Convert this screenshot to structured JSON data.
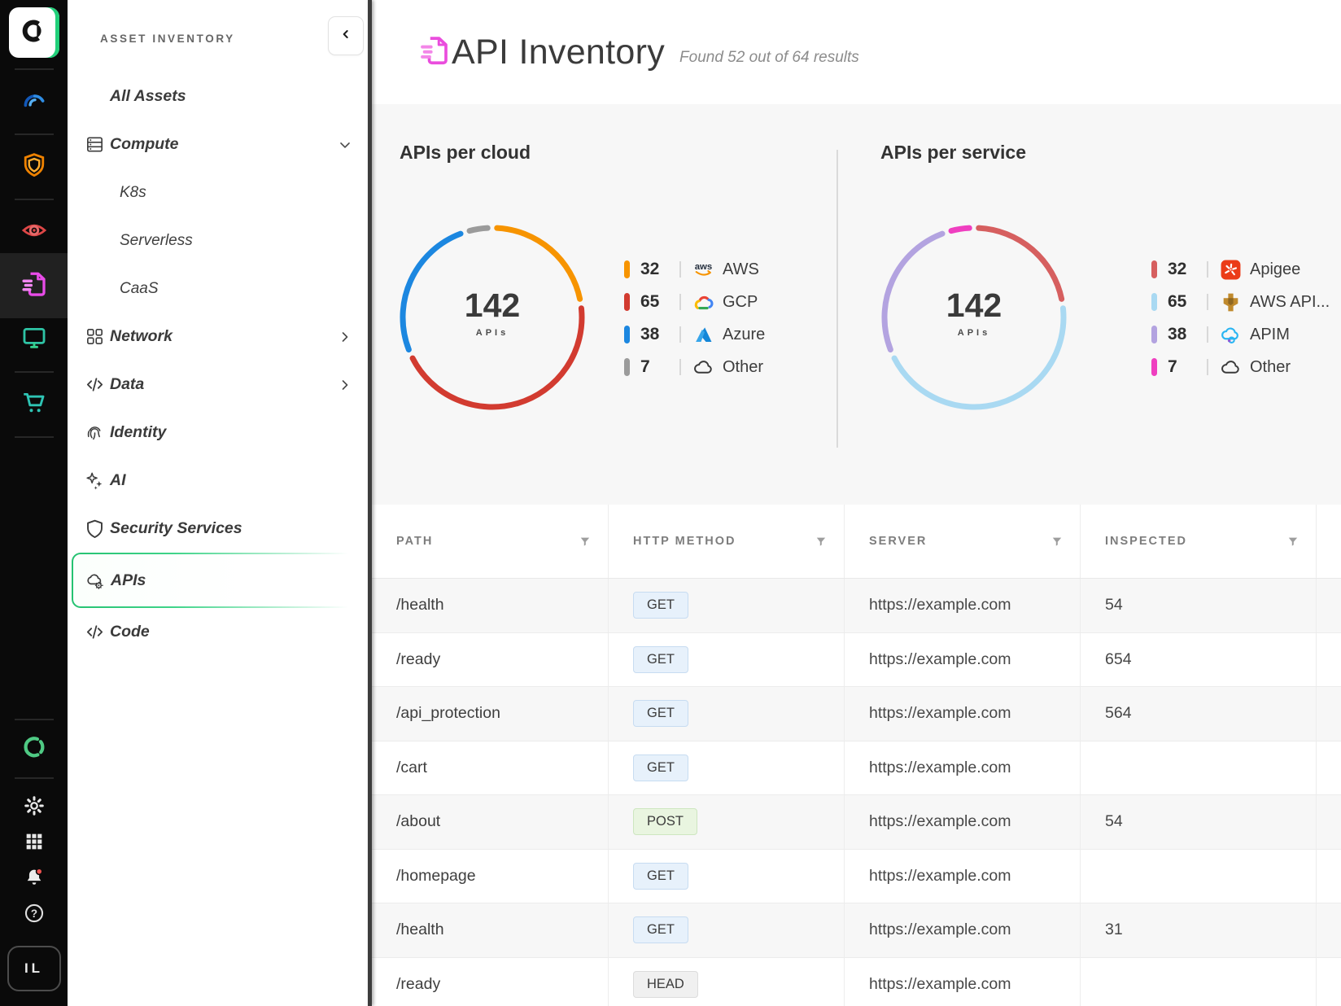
{
  "rail": {
    "avatar_label": "IL"
  },
  "sidebar": {
    "title": "ASSET INVENTORY",
    "items": [
      {
        "label": "All Assets",
        "icon": null,
        "chevron": null,
        "sub": false,
        "active": false
      },
      {
        "label": "Compute",
        "icon": "server",
        "chevron": "down",
        "sub": false,
        "active": false
      },
      {
        "label": "K8s",
        "icon": null,
        "chevron": null,
        "sub": true,
        "active": false
      },
      {
        "label": "Serverless",
        "icon": null,
        "chevron": null,
        "sub": true,
        "active": false
      },
      {
        "label": "CaaS",
        "icon": null,
        "chevron": null,
        "sub": true,
        "active": false
      },
      {
        "label": "Network",
        "icon": "network",
        "chevron": "right",
        "sub": false,
        "active": false
      },
      {
        "label": "Data",
        "icon": "code",
        "chevron": "right",
        "sub": false,
        "active": false
      },
      {
        "label": "Identity",
        "icon": "fingerprint",
        "chevron": null,
        "sub": false,
        "active": false
      },
      {
        "label": "AI",
        "icon": "sparkles",
        "chevron": null,
        "sub": false,
        "active": false
      },
      {
        "label": "Security Services",
        "icon": "shield",
        "chevron": null,
        "sub": false,
        "active": false
      },
      {
        "label": "APIs",
        "icon": "cloud-gear",
        "chevron": null,
        "sub": false,
        "active": true
      },
      {
        "label": "Code",
        "icon": "code",
        "chevron": null,
        "sub": false,
        "active": false
      }
    ],
    "active_accent": "#25c271"
  },
  "header": {
    "title": "API Inventory",
    "subtitle": "Found 52 out of 64 results"
  },
  "chart_data": [
    {
      "type": "donut",
      "title": "APIs per cloud",
      "center_value": "142",
      "center_label": "APIs",
      "total": 142,
      "segments": [
        {
          "label": "AWS",
          "value": 32,
          "color": "#f79400",
          "icon": "aws"
        },
        {
          "label": "GCP",
          "value": 65,
          "color": "#d23b30",
          "icon": "gcp"
        },
        {
          "label": "Azure",
          "value": 38,
          "color": "#1c87e0",
          "icon": "azure"
        },
        {
          "label": "Other",
          "value": 7,
          "color": "#9b9b9b",
          "icon": "cloud"
        }
      ]
    },
    {
      "type": "donut",
      "title": "APIs per service",
      "center_value": "142",
      "center_label": "APIs",
      "total": 142,
      "segments": [
        {
          "label": "Apigee",
          "value": 32,
          "color": "#d65f5f",
          "icon": "apigee"
        },
        {
          "label": "AWS API...",
          "value": 65,
          "color": "#a9d9f2",
          "icon": "aws-gateway"
        },
        {
          "label": "APIM",
          "value": 38,
          "color": "#b3a3e0",
          "icon": "apim"
        },
        {
          "label": "Other",
          "value": 7,
          "color": "#ef3fc0",
          "icon": "cloud"
        }
      ]
    }
  ],
  "table": {
    "columns": [
      "PATH",
      "HTTP METHOD",
      "SERVER",
      "INSPECTED"
    ],
    "method_styles": {
      "GET": {
        "bg": "#e7f1fb",
        "border": "#c7dcf1"
      },
      "POST": {
        "bg": "#e9f5e0",
        "border": "#cde6c0"
      },
      "HEAD": {
        "bg": "#f0f0f0",
        "border": "#dcdcdc"
      }
    },
    "rows": [
      {
        "path": "/health",
        "method": "GET",
        "server": "https://example.com",
        "inspected": "54"
      },
      {
        "path": "/ready",
        "method": "GET",
        "server": "https://example.com",
        "inspected": "654"
      },
      {
        "path": "/api_protection",
        "method": "GET",
        "server": "https://example.com",
        "inspected": "564"
      },
      {
        "path": "/cart",
        "method": "GET",
        "server": "https://example.com",
        "inspected": ""
      },
      {
        "path": "/about",
        "method": "POST",
        "server": "https://example.com",
        "inspected": "54"
      },
      {
        "path": "/homepage",
        "method": "GET",
        "server": "https://example.com",
        "inspected": ""
      },
      {
        "path": "/health",
        "method": "GET",
        "server": "https://example.com",
        "inspected": "31"
      },
      {
        "path": "/ready",
        "method": "HEAD",
        "server": "https://example.com",
        "inspected": ""
      }
    ]
  }
}
